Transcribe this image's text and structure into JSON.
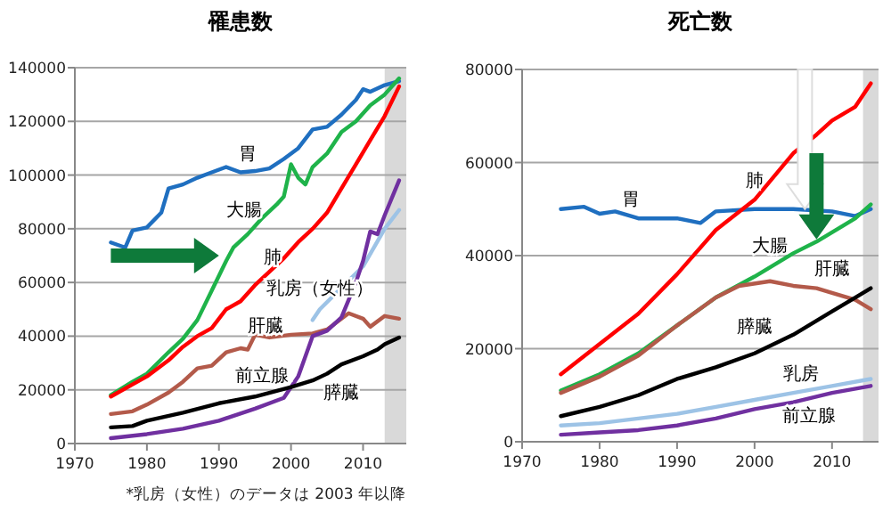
{
  "chart_data": [
    {
      "type": "line",
      "title": "罹患数",
      "xlim": [
        1970,
        2016
      ],
      "ylim": [
        0,
        140000
      ],
      "xticks": [
        1970,
        1980,
        1990,
        2000,
        2010
      ],
      "yticks": [
        0,
        20000,
        40000,
        60000,
        80000,
        100000,
        120000,
        140000
      ],
      "grid": "y",
      "bands": [
        {
          "axis": "x",
          "from": 2013,
          "to": 2016,
          "color": "#d9d9d9"
        }
      ],
      "annotations": [
        "*乳房（女性）のデータは 2003 年以降"
      ],
      "series": [
        {
          "name": "胃",
          "color": "#1f6fc0",
          "x": [
            1975,
            1977,
            1978,
            1980,
            1982,
            1983,
            1985,
            1987,
            1989,
            1991,
            1993,
            1995,
            1997,
            1999,
            2001,
            2003,
            2005,
            2007,
            2009,
            2010,
            2011,
            2013,
            2015
          ],
          "values": [
            74900,
            73000,
            79300,
            80500,
            86000,
            95000,
            96500,
            99000,
            101000,
            103000,
            101000,
            101500,
            102500,
            106000,
            110000,
            117000,
            118000,
            122500,
            128000,
            132000,
            131000,
            133500,
            135000
          ]
        },
        {
          "name": "大腸",
          "color": "#1fb34a",
          "x": [
            1975,
            1978,
            1980,
            1983,
            1985,
            1987,
            1989,
            1991,
            1992,
            1994,
            1996,
            1998,
            1999,
            2000,
            2001,
            2002,
            2003,
            2005,
            2007,
            2009,
            2011,
            2013,
            2015
          ],
          "values": [
            18000,
            23000,
            26000,
            34000,
            39000,
            46000,
            57000,
            68000,
            73000,
            78000,
            84000,
            89000,
            92000,
            104000,
            99000,
            96500,
            103000,
            108000,
            116000,
            120000,
            126000,
            130000,
            136000
          ]
        },
        {
          "name": "肺",
          "color": "#ff0000",
          "x": [
            1975,
            1978,
            1980,
            1983,
            1985,
            1987,
            1989,
            1991,
            1993,
            1995,
            1997,
            1999,
            2001,
            2003,
            2005,
            2007,
            2009,
            2011,
            2013,
            2015
          ],
          "values": [
            17500,
            22000,
            25000,
            31000,
            36000,
            40000,
            43000,
            50000,
            53000,
            59000,
            64000,
            69000,
            75000,
            80000,
            86000,
            95000,
            104000,
            113000,
            122000,
            133000
          ]
        },
        {
          "name": "乳房（女性）",
          "color": "#9dc3e6",
          "x": [
            2003,
            2004,
            2007,
            2010,
            2013,
            2015
          ],
          "values": [
            46000,
            50000,
            58000,
            66000,
            80000,
            87000
          ]
        },
        {
          "name": "肝臓",
          "color": "#b35a4a",
          "x": [
            1975,
            1978,
            1980,
            1983,
            1985,
            1987,
            1989,
            1991,
            1993,
            1994,
            1995,
            1997,
            2000,
            2003,
            2005,
            2008,
            2010,
            2011,
            2013,
            2015
          ],
          "values": [
            11000,
            12000,
            14500,
            19000,
            23000,
            28000,
            29000,
            34000,
            35500,
            35000,
            40500,
            39500,
            40500,
            41000,
            42500,
            48500,
            46500,
            43500,
            47500,
            46500
          ]
        },
        {
          "name": "前立腺",
          "color": "#7030a0",
          "x": [
            1975,
            1980,
            1985,
            1990,
            1995,
            1999,
            2001,
            2003,
            2005,
            2007,
            2009,
            2010,
            2011,
            2012,
            2013,
            2015
          ],
          "values": [
            2000,
            3500,
            5500,
            8500,
            13000,
            17000,
            25000,
            40000,
            42000,
            47000,
            60000,
            68000,
            79000,
            78000,
            85000,
            98000
          ]
        },
        {
          "name": "膵臓",
          "color": "#000000",
          "x": [
            1975,
            1978,
            1980,
            1985,
            1990,
            1995,
            2000,
            2003,
            2005,
            2007,
            2010,
            2012,
            2013,
            2015
          ],
          "values": [
            6000,
            6500,
            8500,
            11500,
            15000,
            17500,
            21000,
            23500,
            26000,
            29500,
            32500,
            35000,
            37000,
            39500
          ]
        }
      ]
    },
    {
      "type": "line",
      "title": "死亡数",
      "xlim": [
        1970,
        2016
      ],
      "ylim": [
        0,
        80000
      ],
      "xticks": [
        1970,
        1980,
        1990,
        2000,
        2010
      ],
      "yticks": [
        0,
        20000,
        40000,
        60000,
        80000
      ],
      "grid": "y",
      "bands": [
        {
          "axis": "x",
          "from": 2014,
          "to": 2016,
          "color": "#d9d9d9"
        }
      ],
      "series": [
        {
          "name": "胃",
          "color": "#1f6fc0",
          "x": [
            1975,
            1978,
            1980,
            1982,
            1985,
            1990,
            1993,
            1995,
            2000,
            2005,
            2010,
            2013,
            2015
          ],
          "values": [
            50000,
            50500,
            49000,
            49500,
            48000,
            48000,
            47000,
            49500,
            50000,
            50000,
            49500,
            48500,
            50000
          ]
        },
        {
          "name": "肺",
          "color": "#ff0000",
          "x": [
            1975,
            1980,
            1985,
            1990,
            1995,
            2000,
            2005,
            2008,
            2010,
            2013,
            2015
          ],
          "values": [
            14500,
            21000,
            27500,
            36000,
            45500,
            52000,
            62000,
            66000,
            69000,
            72000,
            77000
          ]
        },
        {
          "name": "大腸",
          "color": "#1fb34a",
          "x": [
            1975,
            1980,
            1985,
            1990,
            1995,
            2000,
            2005,
            2008,
            2010,
            2013,
            2015
          ],
          "values": [
            11000,
            14500,
            19000,
            25000,
            31000,
            35500,
            40500,
            43000,
            45000,
            48000,
            51000
          ]
        },
        {
          "name": "肝臓",
          "color": "#b35a4a",
          "x": [
            1975,
            1980,
            1985,
            1990,
            1995,
            1998,
            2002,
            2005,
            2008,
            2010,
            2013,
            2015
          ],
          "values": [
            10500,
            14000,
            18500,
            25000,
            31000,
            33500,
            34500,
            33500,
            33000,
            32000,
            30500,
            28500
          ]
        },
        {
          "name": "膵臓",
          "color": "#000000",
          "x": [
            1975,
            1980,
            1985,
            1990,
            1995,
            2000,
            2005,
            2010,
            2013,
            2015
          ],
          "values": [
            5500,
            7500,
            10000,
            13500,
            16000,
            19000,
            23000,
            28000,
            31000,
            33000
          ]
        },
        {
          "name": "乳房",
          "color": "#9dc3e6",
          "x": [
            1975,
            1980,
            1985,
            1990,
            1995,
            2000,
            2005,
            2010,
            2015
          ],
          "values": [
            3500,
            4000,
            5000,
            6000,
            7500,
            9000,
            10500,
            12000,
            13500
          ]
        },
        {
          "name": "前立腺",
          "color": "#7030a0",
          "x": [
            1975,
            1980,
            1985,
            1990,
            1995,
            2000,
            2005,
            2010,
            2015
          ],
          "values": [
            1500,
            2000,
            2500,
            3500,
            5000,
            7000,
            8500,
            10500,
            12000
          ]
        }
      ]
    }
  ]
}
